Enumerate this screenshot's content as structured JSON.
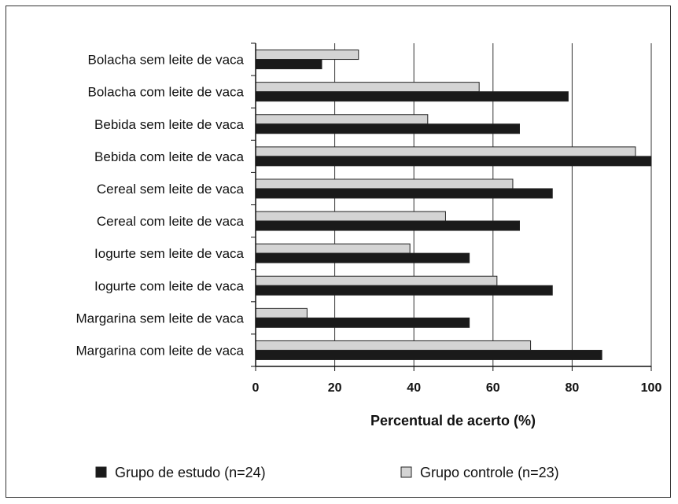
{
  "chart_data": {
    "type": "bar",
    "orientation": "horizontal",
    "categories": [
      "Bolacha sem leite de vaca",
      "Bolacha com leite de vaca",
      "Bebida sem leite de vaca",
      "Bebida com leite de vaca",
      "Cereal sem leite de vaca",
      "Cereal com leite de vaca",
      "Iogurte sem leite de vaca",
      "Iogurte com leite de vaca",
      "Margarina sem leite de vaca",
      "Margarina com leite de vaca"
    ],
    "series": [
      {
        "name": "Grupo controle (n=23)",
        "color": "#d4d4d4",
        "values": [
          26,
          56.5,
          43.5,
          96,
          65,
          48,
          39,
          61,
          13,
          69.5
        ]
      },
      {
        "name": "Grupo de estudo (n=24)",
        "color": "#1a1a1a",
        "values": [
          16.7,
          79,
          66.7,
          100,
          75,
          66.7,
          54,
          75,
          54,
          87.5
        ]
      }
    ],
    "xlabel": "Percentual de acerto (%)",
    "xlim": [
      0,
      100
    ],
    "xticks": [
      "0",
      "20",
      "40",
      "60",
      "80",
      "100"
    ],
    "grid": "vertical",
    "legend": {
      "position": "bottom",
      "items": [
        {
          "label": "Grupo de estudo (n=24)",
          "color": "#1a1a1a"
        },
        {
          "label": "Grupo controle (n=23)",
          "color": "#d4d4d4"
        }
      ]
    }
  }
}
